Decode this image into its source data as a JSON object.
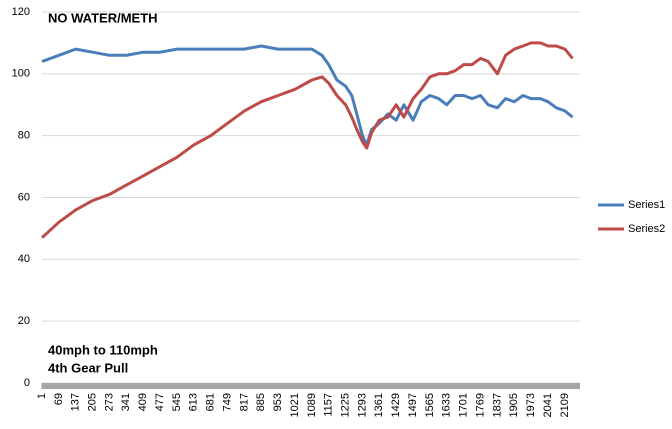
{
  "chart_data": {
    "type": "line",
    "title": "NO WATER/METH",
    "annotations": [
      "40mph to 110mph",
      "4th Gear Pull"
    ],
    "x": [
      1,
      69,
      137,
      205,
      273,
      341,
      409,
      477,
      545,
      613,
      681,
      749,
      817,
      885,
      953,
      1021,
      1089,
      1130,
      1157,
      1190,
      1225,
      1250,
      1270,
      1293,
      1310,
      1330,
      1361,
      1395,
      1429,
      1460,
      1497,
      1530,
      1565,
      1600,
      1633,
      1667,
      1701,
      1735,
      1769,
      1800,
      1837,
      1870,
      1905,
      1940,
      1973,
      2010,
      2041,
      2075,
      2109,
      2140
    ],
    "series": [
      {
        "name": "Series1",
        "color": "#4a7ebb",
        "values": [
          104,
          106,
          108,
          107,
          106,
          106,
          107,
          107,
          108,
          108,
          108,
          108,
          108,
          109,
          108,
          108,
          108,
          106,
          103,
          98,
          96,
          93,
          87,
          80,
          77,
          82,
          84,
          87,
          85,
          90,
          85,
          91,
          93,
          92,
          90,
          93,
          93,
          92,
          93,
          90,
          89,
          92,
          91,
          93,
          92,
          92,
          91,
          89,
          88,
          86
        ]
      },
      {
        "name": "Series2",
        "color": "#be4b48",
        "values": [
          47,
          52,
          56,
          59,
          61,
          64,
          67,
          70,
          73,
          77,
          80,
          84,
          88,
          91,
          93,
          95,
          98,
          99,
          97,
          93,
          90,
          86,
          82,
          78,
          76,
          81,
          85,
          86,
          90,
          86,
          92,
          95,
          99,
          100,
          100,
          101,
          103,
          103,
          105,
          104,
          100,
          106,
          108,
          109,
          110,
          110,
          109,
          109,
          108,
          105
        ]
      }
    ],
    "xlim": [
      1,
      2170
    ],
    "xticks": [
      1,
      69,
      137,
      205,
      273,
      341,
      409,
      477,
      545,
      613,
      681,
      749,
      817,
      885,
      953,
      1021,
      1089,
      1157,
      1225,
      1293,
      1361,
      1429,
      1497,
      1565,
      1633,
      1701,
      1769,
      1837,
      1905,
      1973,
      2041,
      2109
    ],
    "ylim": [
      0,
      120
    ],
    "yticks": [
      0,
      20,
      40,
      60,
      80,
      100,
      120
    ],
    "grid": true,
    "legend": "right"
  }
}
